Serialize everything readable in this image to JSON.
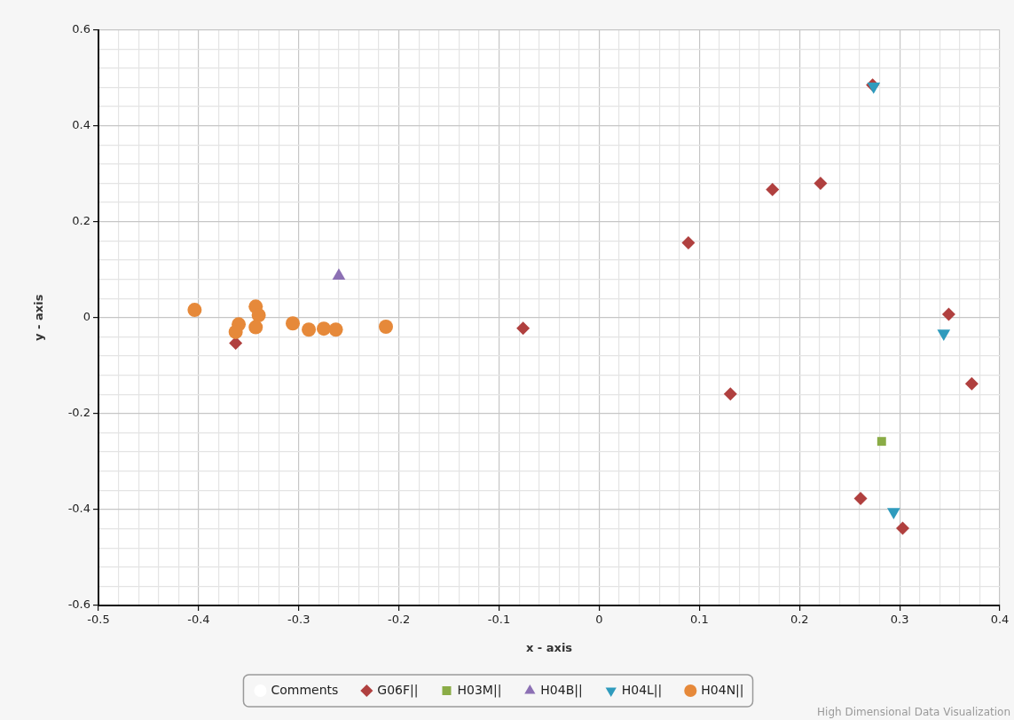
{
  "chart_data": {
    "type": "scatter",
    "xlabel": "x - axis",
    "ylabel": "y - axis",
    "xlim": [
      -0.5,
      0.4
    ],
    "xticks": [
      -0.5,
      {
        "value": -0.48,
        "label": null
      },
      {
        "value": -0.46,
        "label": null
      },
      {
        "value": -0.44,
        "label": null
      },
      {
        "value": -0.42,
        "label": null
      },
      -0.4,
      {
        "value": -0.38,
        "label": null
      },
      {
        "value": -0.36,
        "label": null
      },
      {
        "value": -0.34,
        "label": null
      },
      {
        "value": -0.32,
        "label": null
      },
      -0.3,
      {
        "value": -0.28,
        "label": null
      },
      {
        "value": -0.26,
        "label": null
      },
      {
        "value": -0.24,
        "label": null
      },
      {
        "value": -0.22,
        "label": null
      },
      -0.2,
      {
        "value": -0.18,
        "label": null
      },
      {
        "value": -0.16,
        "label": null
      },
      {
        "value": -0.14,
        "label": null
      },
      {
        "value": -0.12,
        "label": null
      },
      -0.1,
      {
        "value": -0.08,
        "label": null
      },
      {
        "value": -0.06,
        "label": null
      },
      {
        "value": -0.04,
        "label": null
      },
      {
        "value": -0.02,
        "label": null
      },
      0,
      {
        "value": 0.02,
        "label": null
      },
      {
        "value": 0.04,
        "label": null
      },
      {
        "value": 0.06,
        "label": null
      },
      {
        "value": 0.08,
        "label": null
      },
      0.1,
      {
        "value": 0.12,
        "label": null
      },
      {
        "value": 0.14,
        "label": null
      },
      {
        "value": 0.16,
        "label": null
      },
      {
        "value": 0.18,
        "label": null
      },
      0.2,
      {
        "value": 0.22,
        "label": null
      },
      {
        "value": 0.24,
        "label": null
      },
      {
        "value": 0.26,
        "label": null
      },
      {
        "value": 0.28,
        "label": null
      },
      0.3,
      {
        "value": 0.32,
        "label": null
      },
      {
        "value": 0.34,
        "label": null
      },
      {
        "value": 0.36,
        "label": null
      },
      {
        "value": 0.38,
        "label": null
      },
      0.4
    ],
    "ylim": [
      -0.6,
      0.6
    ],
    "yticks": [
      -0.6,
      {
        "value": -0.56,
        "label": null
      },
      {
        "value": -0.52,
        "label": null
      },
      {
        "value": -0.48,
        "label": null
      },
      {
        "value": -0.44,
        "label": null
      },
      -0.4,
      {
        "value": -0.36,
        "label": null
      },
      {
        "value": -0.32,
        "label": null
      },
      {
        "value": -0.28,
        "label": null
      },
      {
        "value": -0.24,
        "label": null
      },
      -0.2,
      {
        "value": -0.16,
        "label": null
      },
      {
        "value": -0.12,
        "label": null
      },
      {
        "value": -0.08,
        "label": null
      },
      {
        "value": -0.04,
        "label": null
      },
      0,
      {
        "value": 0.04,
        "label": null
      },
      {
        "value": 0.08,
        "label": null
      },
      {
        "value": 0.12,
        "label": null
      },
      {
        "value": 0.16,
        "label": null
      },
      0.2,
      {
        "value": 0.24,
        "label": null
      },
      {
        "value": 0.28,
        "label": null
      },
      {
        "value": 0.32,
        "label": null
      },
      {
        "value": 0.36,
        "label": null
      },
      0.4,
      {
        "value": 0.44,
        "label": null
      },
      {
        "value": 0.48,
        "label": null
      },
      {
        "value": 0.52,
        "label": null
      },
      {
        "value": 0.56,
        "label": null
      },
      0.6
    ],
    "grid": true,
    "legend": "bottom",
    "series": [
      {
        "name": "Comments",
        "color": "#ffffff",
        "marker": "circle"
      },
      {
        "name": "G06F||",
        "color": "#b0403f",
        "marker": "diamond",
        "x": [
          -0.363,
          -0.076,
          0.089,
          0.131,
          0.173,
          0.221,
          0.273,
          0.261,
          0.303,
          0.349,
          0.372
        ],
        "values": [
          -0.053,
          -0.022,
          0.156,
          -0.159,
          0.267,
          0.28,
          0.485,
          -0.377,
          -0.439,
          0.007,
          -0.138
        ]
      },
      {
        "name": "H03M||",
        "color": "#8aac46",
        "marker": "square",
        "x": [
          0.282
        ],
        "values": [
          -0.258
        ]
      },
      {
        "name": "H04B||",
        "color": "#8c70b4",
        "marker": "triangle",
        "x": [
          -0.26
        ],
        "values": [
          0.087
        ]
      },
      {
        "name": "H04L||",
        "color": "#2f9bbd",
        "marker": "triangle-down",
        "x": [
          0.274,
          0.344,
          0.294
        ],
        "values": [
          0.482,
          -0.033,
          -0.405
        ]
      },
      {
        "name": "H04N||",
        "color": "#e6893a",
        "marker": "circle",
        "x": [
          -0.404,
          -0.343,
          -0.34,
          -0.343,
          -0.36,
          -0.363,
          -0.306,
          -0.29,
          -0.275,
          -0.263,
          -0.213
        ],
        "values": [
          0.016,
          0.023,
          0.005,
          -0.02,
          -0.014,
          -0.03,
          -0.012,
          -0.025,
          -0.023,
          -0.025,
          -0.019
        ]
      }
    ],
    "annotations": [
      "High Dimensional Data Visualization"
    ]
  }
}
